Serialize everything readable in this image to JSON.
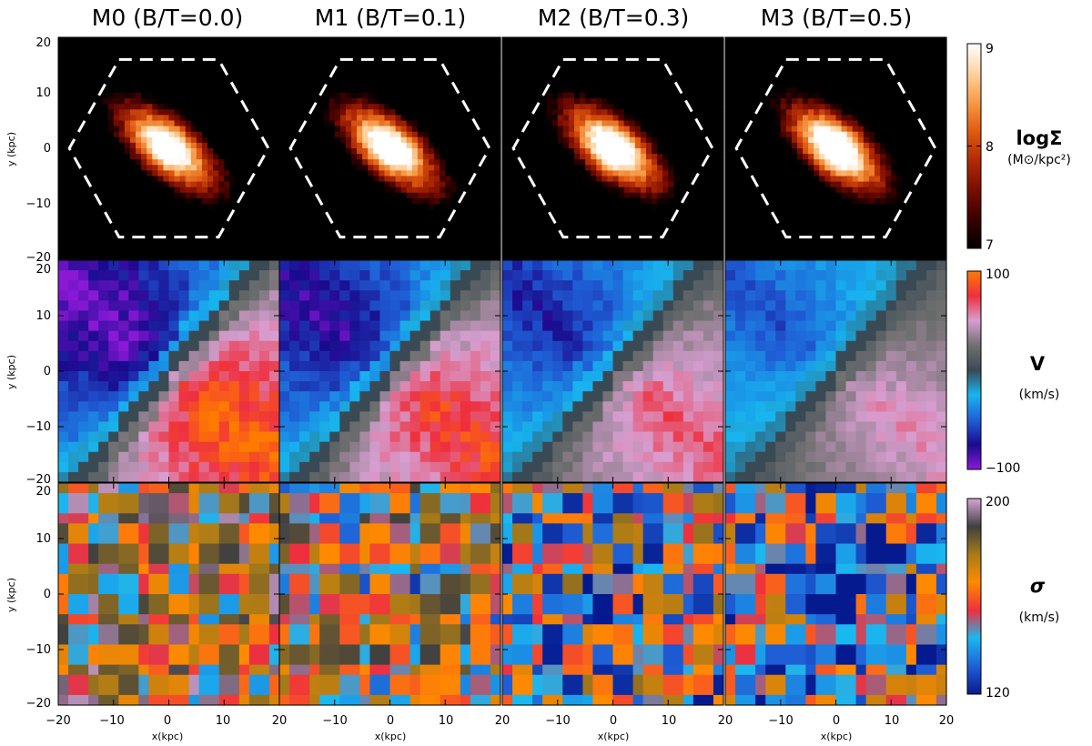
{
  "chart_data": {
    "type": "heatmap",
    "columns": [
      {
        "id": "M0",
        "title": "M0 (B/T=0.0)",
        "bt": 0.0
      },
      {
        "id": "M1",
        "title": "M1 (B/T=0.1)",
        "bt": 0.1
      },
      {
        "id": "M2",
        "title": "M2 (B/T=0.3)",
        "bt": 0.3
      },
      {
        "id": "M3",
        "title": "M3 (B/T=0.5)",
        "bt": 0.5
      }
    ],
    "rows": [
      {
        "id": "density",
        "ylabel": "y (kpc)",
        "quantity": "logΣ",
        "units": "(M⊙/kpc²)",
        "range": [
          7,
          9
        ],
        "cbar_ticks": [
          "9",
          "8",
          "7"
        ],
        "cbar_tick_values": [
          9,
          8,
          7
        ],
        "colormap": [
          "#000000",
          "#3a0000",
          "#7a0c00",
          "#b02a05",
          "#e05a10",
          "#f79a45",
          "#ffd3a0",
          "#ffffff"
        ]
      },
      {
        "id": "velocity",
        "ylabel": "y (kpc)",
        "quantity": "V",
        "units": "(km/s)",
        "range": [
          -100,
          100
        ],
        "cbar_ticks": [
          "100",
          "−100"
        ],
        "cbar_tick_values": [
          100,
          -100
        ],
        "colormap": [
          "#8a19d6",
          "#1a0a8f",
          "#1f5fd6",
          "#17b6f0",
          "#3a4a55",
          "#707070",
          "#d79ed0",
          "#ef2f3e",
          "#ff7a00"
        ]
      },
      {
        "id": "dispersion",
        "ylabel": "y (kpc)",
        "quantity": "σ",
        "units": "(km/s)",
        "range": [
          120,
          200
        ],
        "cbar_ticks": [
          "200",
          "120"
        ],
        "cbar_tick_values": [
          200,
          120
        ],
        "colormap": [
          "#061a8f",
          "#1f5fd6",
          "#1ab8f0",
          "#ef2f3e",
          "#ff8a00",
          "#a77b18",
          "#404040",
          "#d7a5d7"
        ]
      }
    ],
    "x_axis": {
      "label": "x(kpc)",
      "range": [
        -20,
        20
      ],
      "ticks": [
        -20,
        -10,
        0,
        10,
        20
      ],
      "tick_labels": [
        "−20",
        "−10",
        "0",
        "10",
        "20"
      ]
    },
    "y_axis": {
      "label": "y (kpc)",
      "range": [
        -20,
        20
      ],
      "ticks": [
        20,
        10,
        0,
        -10,
        -20
      ],
      "tick_labels": [
        "20",
        "10",
        "0",
        "−10",
        "−20"
      ]
    },
    "hexagon_vertices_kpc": [
      [
        -9,
        16
      ],
      [
        9,
        16
      ],
      [
        18,
        0
      ],
      [
        9,
        -16
      ],
      [
        -9,
        -16
      ],
      [
        -18,
        0
      ]
    ],
    "disk_model": {
      "position_angle_deg": -40,
      "axis_ratio": 0.42
    },
    "velocity_peak_kms": [
      100,
      85,
      70,
      55
    ],
    "dispersion_mean_kms": [
      168,
      160,
      150,
      145
    ]
  }
}
